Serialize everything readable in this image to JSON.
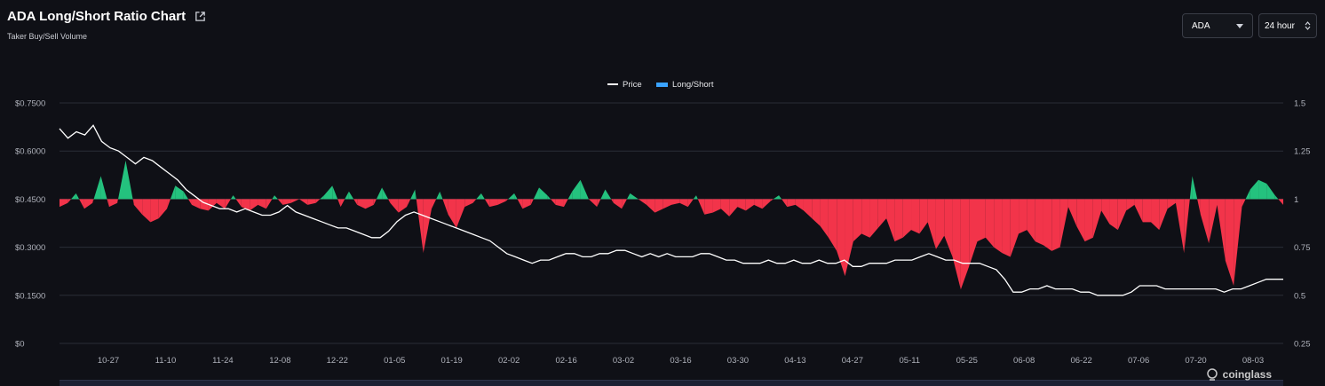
{
  "header": {
    "title": "ADA Long/Short Ratio Chart",
    "subtitle": "Taker Buy/Sell Volume"
  },
  "controls": {
    "asset_selected": "ADA",
    "range_selected": "24 hour"
  },
  "watermark": "coinglass",
  "colors": {
    "background": "#0f1016",
    "positive": "#24c27e",
    "negative": "#f2344a",
    "price_line": "#ffffff",
    "legend_long_short": "#3aa3ff",
    "grid": "#2a2d36"
  },
  "chart_data": {
    "type": "area",
    "legend": [
      {
        "name": "Price",
        "type": "line"
      },
      {
        "name": "Long/Short",
        "type": "area"
      }
    ],
    "legend_placement": "top-center",
    "baseline_ratio": 1,
    "x_ticks": [
      "10-27",
      "11-10",
      "11-24",
      "12-08",
      "12-22",
      "01-05",
      "01-19",
      "02-02",
      "02-16",
      "03-02",
      "03-16",
      "03-30",
      "04-13",
      "04-27",
      "05-11",
      "05-25",
      "06-08",
      "06-22",
      "07-06",
      "07-20",
      "08-03"
    ],
    "y_left_ticks": [
      "$0.7500",
      "$0.6000",
      "$0.4500",
      "$0.3000",
      "$0.1500",
      "$0"
    ],
    "y_right_ticks": [
      "1.5",
      "1.25",
      "1",
      "0.75",
      "0.5",
      "0.25"
    ],
    "y_left_range": [
      0,
      0.75
    ],
    "y_right_range": [
      0.25,
      1.5
    ],
    "grid": true,
    "series": [
      {
        "name": "Price",
        "axis": "left",
        "values": [
          0.67,
          0.64,
          0.66,
          0.65,
          0.68,
          0.63,
          0.61,
          0.6,
          0.58,
          0.56,
          0.58,
          0.57,
          0.55,
          0.53,
          0.51,
          0.48,
          0.46,
          0.44,
          0.43,
          0.42,
          0.42,
          0.41,
          0.42,
          0.41,
          0.4,
          0.4,
          0.41,
          0.43,
          0.41,
          0.4,
          0.39,
          0.38,
          0.37,
          0.36,
          0.36,
          0.35,
          0.34,
          0.33,
          0.33,
          0.35,
          0.38,
          0.4,
          0.41,
          0.4,
          0.39,
          0.38,
          0.37,
          0.36,
          0.35,
          0.34,
          0.33,
          0.32,
          0.3,
          0.28,
          0.27,
          0.26,
          0.25,
          0.26,
          0.26,
          0.27,
          0.28,
          0.28,
          0.27,
          0.27,
          0.28,
          0.28,
          0.29,
          0.29,
          0.28,
          0.27,
          0.28,
          0.27,
          0.28,
          0.27,
          0.27,
          0.27,
          0.28,
          0.28,
          0.27,
          0.26,
          0.26,
          0.25,
          0.25,
          0.25,
          0.26,
          0.25,
          0.25,
          0.26,
          0.25,
          0.25,
          0.26,
          0.25,
          0.25,
          0.26,
          0.24,
          0.24,
          0.25,
          0.25,
          0.25,
          0.26,
          0.26,
          0.26,
          0.27,
          0.28,
          0.27,
          0.26,
          0.26,
          0.25,
          0.25,
          0.25,
          0.24,
          0.23,
          0.2,
          0.16,
          0.16,
          0.17,
          0.17,
          0.18,
          0.17,
          0.17,
          0.17,
          0.16,
          0.16,
          0.15,
          0.15,
          0.15,
          0.15,
          0.16,
          0.18,
          0.18,
          0.18,
          0.17,
          0.17,
          0.17,
          0.17,
          0.17,
          0.17,
          0.17,
          0.16,
          0.17,
          0.17,
          0.18,
          0.19,
          0.2,
          0.2,
          0.2
        ]
      },
      {
        "name": "Long/Short",
        "axis": "right",
        "values": [
          0.96,
          0.98,
          1.03,
          0.95,
          0.98,
          1.12,
          0.96,
          0.98,
          1.2,
          0.97,
          0.92,
          0.88,
          0.9,
          0.95,
          1.07,
          1.04,
          0.97,
          0.95,
          0.94,
          0.98,
          0.95,
          1.02,
          0.96,
          0.94,
          0.97,
          0.95,
          1.02,
          0.97,
          0.98,
          1.0,
          0.97,
          0.98,
          1.02,
          1.07,
          0.96,
          1.04,
          0.97,
          0.95,
          0.97,
          1.06,
          0.98,
          0.93,
          0.96,
          1.05,
          0.72,
          0.95,
          1.04,
          0.92,
          0.85,
          0.96,
          0.98,
          1.03,
          0.96,
          0.97,
          0.99,
          1.03,
          0.95,
          0.97,
          1.06,
          1.02,
          0.97,
          0.96,
          1.04,
          1.1,
          1.0,
          0.96,
          1.05,
          0.98,
          0.95,
          1.03,
          1.0,
          0.97,
          0.93,
          0.95,
          0.97,
          0.98,
          0.96,
          1.02,
          0.92,
          0.93,
          0.95,
          0.91,
          0.96,
          0.94,
          0.97,
          0.95,
          0.99,
          1.02,
          0.96,
          0.97,
          0.94,
          0.9,
          0.86,
          0.8,
          0.73,
          0.6,
          0.78,
          0.82,
          0.8,
          0.85,
          0.9,
          0.78,
          0.8,
          0.84,
          0.82,
          0.88,
          0.74,
          0.81,
          0.7,
          0.53,
          0.65,
          0.78,
          0.8,
          0.75,
          0.72,
          0.7,
          0.82,
          0.84,
          0.78,
          0.76,
          0.73,
          0.75,
          0.96,
          0.86,
          0.78,
          0.8,
          0.94,
          0.87,
          0.84,
          0.94,
          0.97,
          0.88,
          0.88,
          0.84,
          0.95,
          0.98,
          0.72,
          1.12,
          0.92,
          0.77,
          0.97,
          0.68,
          0.55,
          0.96,
          1.05,
          1.1,
          1.08,
          1.02,
          0.97
        ]
      }
    ]
  }
}
